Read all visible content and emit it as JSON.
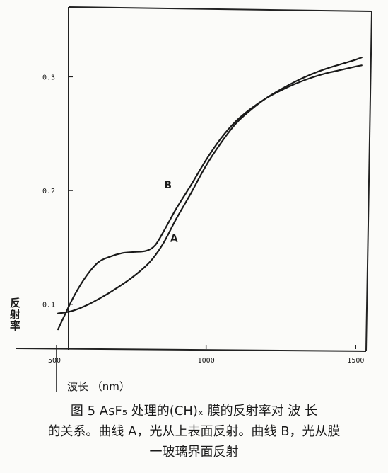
{
  "chart_data": {
    "type": "line",
    "xlabel": "波长 （nm）",
    "ylabel": "反射率",
    "xlim": [
      500,
      1530
    ],
    "ylim": [
      0.06,
      0.36
    ],
    "x_ticks": [
      500,
      1000,
      1500
    ],
    "x_tick_labels": [
      "500",
      "1000",
      "1500"
    ],
    "y_ticks": [
      0.1,
      0.2,
      0.3
    ],
    "y_tick_labels": [
      "0.1",
      "0.2",
      "0.3"
    ],
    "grid": false,
    "series": [
      {
        "name": "A",
        "x": [
          505,
          550,
          600,
          650,
          700,
          750,
          800,
          830,
          860,
          900,
          950,
          1000,
          1050,
          1100,
          1150,
          1200,
          1250,
          1300,
          1350,
          1400,
          1450,
          1500,
          1520
        ],
        "y": [
          0.092,
          0.094,
          0.099,
          0.106,
          0.114,
          0.123,
          0.134,
          0.143,
          0.155,
          0.175,
          0.198,
          0.222,
          0.242,
          0.259,
          0.271,
          0.281,
          0.289,
          0.296,
          0.302,
          0.307,
          0.311,
          0.315,
          0.317
        ]
      },
      {
        "name": "B",
        "x": [
          505,
          530,
          560,
          600,
          640,
          680,
          720,
          760,
          800,
          830,
          860,
          900,
          950,
          1000,
          1050,
          1100,
          1150,
          1200,
          1250,
          1300,
          1350,
          1400,
          1450,
          1500,
          1520
        ],
        "y": [
          0.078,
          0.092,
          0.108,
          0.125,
          0.137,
          0.142,
          0.145,
          0.146,
          0.147,
          0.152,
          0.165,
          0.184,
          0.205,
          0.227,
          0.246,
          0.261,
          0.272,
          0.281,
          0.288,
          0.294,
          0.299,
          0.303,
          0.306,
          0.309,
          0.31
        ]
      }
    ],
    "annotations": [
      {
        "text": "A",
        "x": 880,
        "y": 0.155
      },
      {
        "text": "B",
        "x": 860,
        "y": 0.202
      }
    ]
  },
  "caption": {
    "line1": "图 5  AsF₅ 处理的(CH)ₓ 膜的反射率对 波 长",
    "line2": "的关系。曲线 A，光从上表面反射。曲线 B，光从膜",
    "line3": "一玻璃界面反射"
  }
}
